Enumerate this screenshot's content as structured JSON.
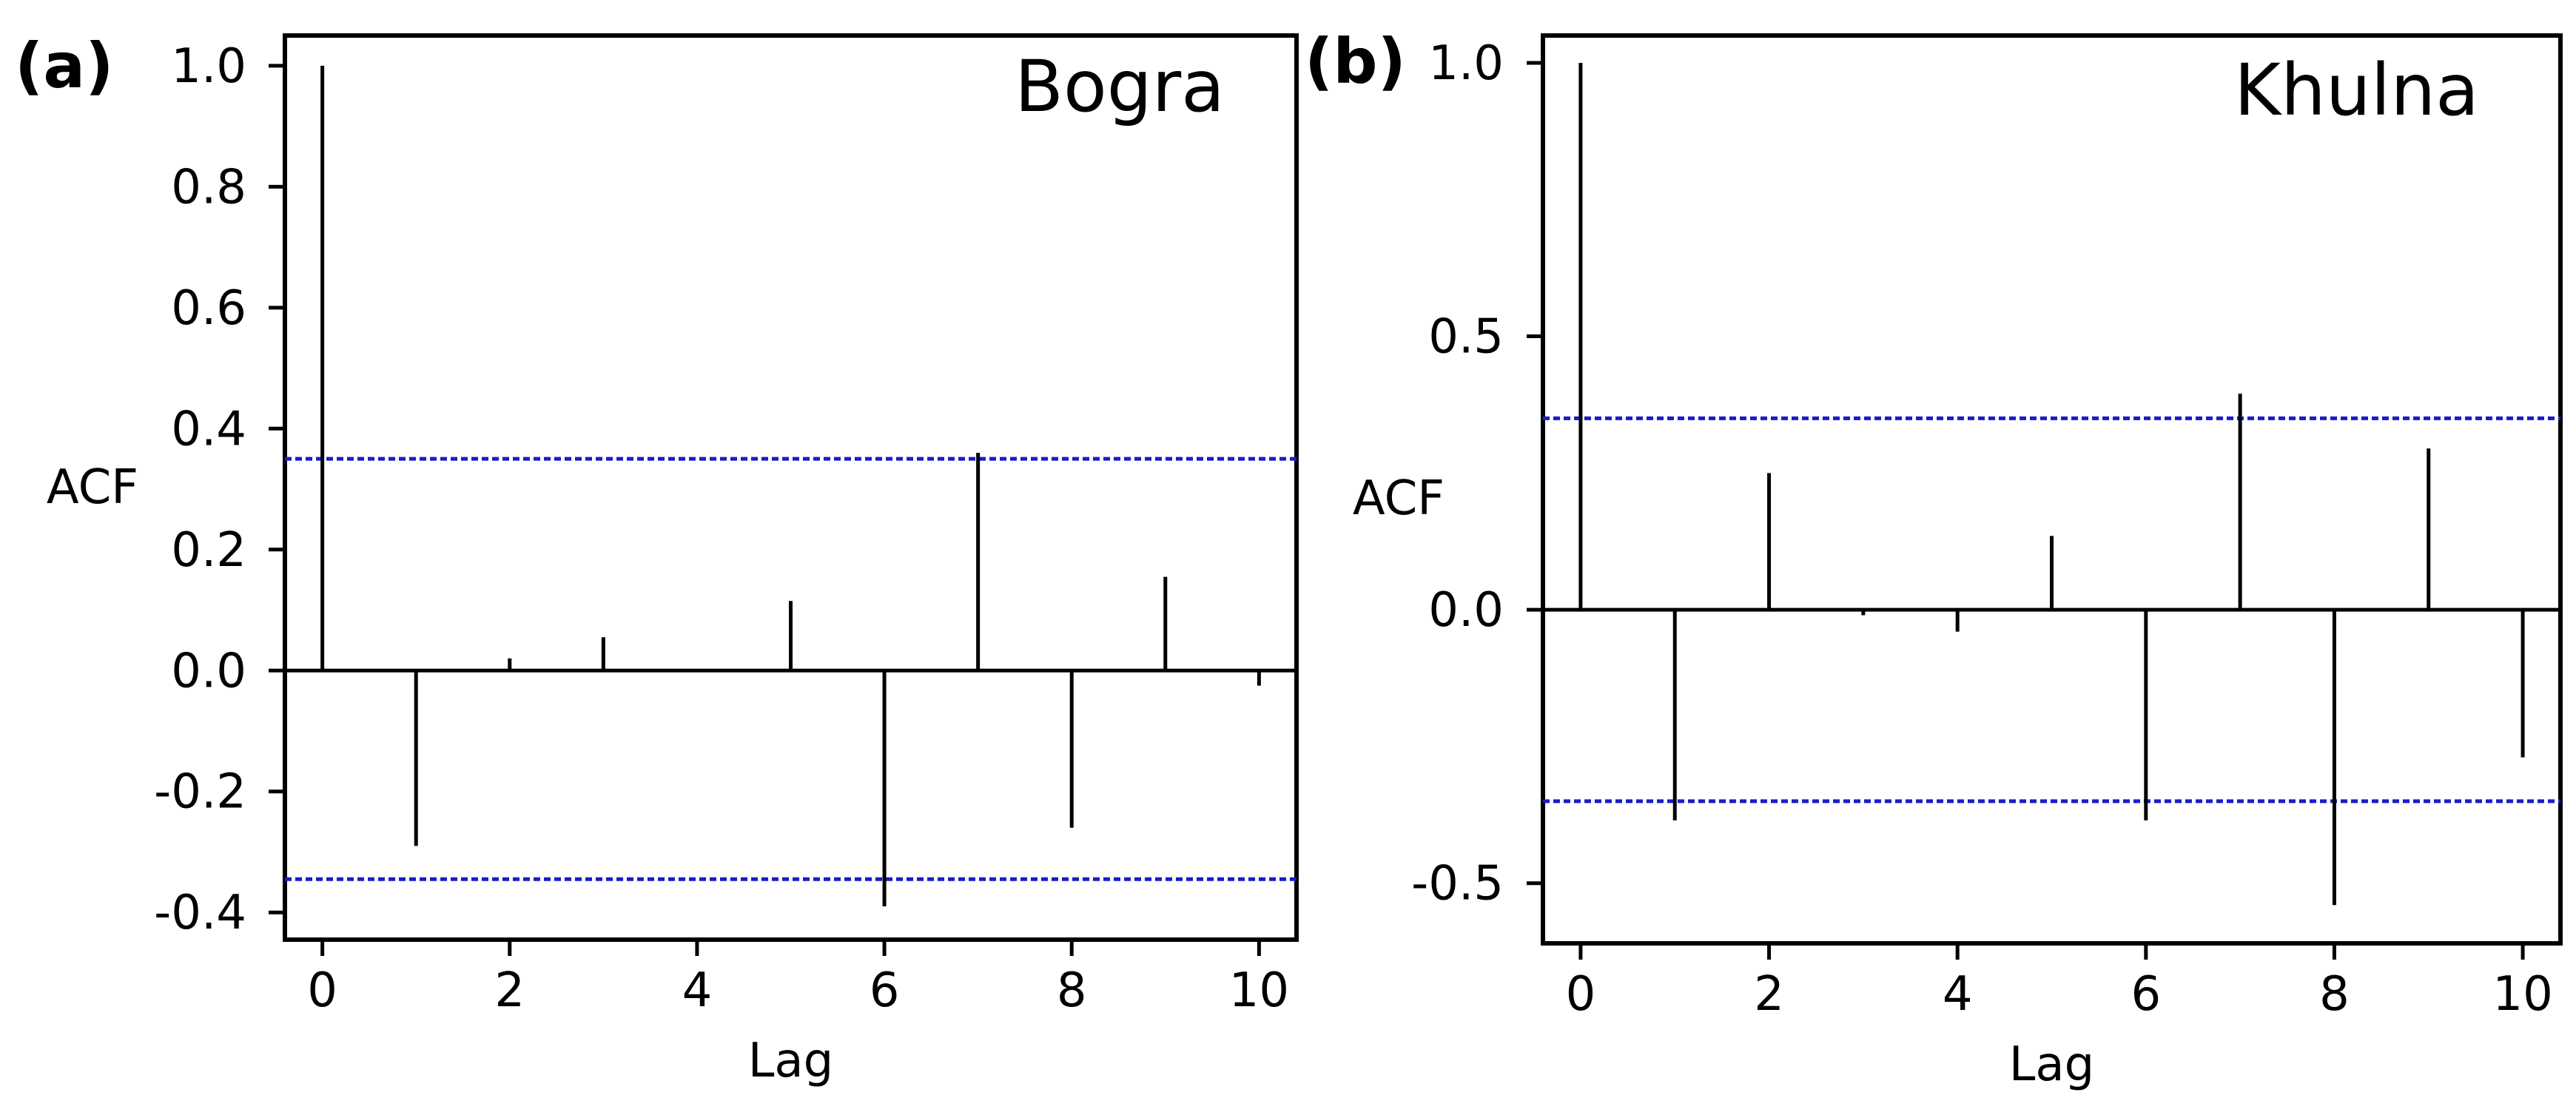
{
  "chart_data": [
    {
      "type": "bar",
      "panel_label": "(a)",
      "site": "Bogra",
      "xlabel": "Lag",
      "ylabel": "ACF",
      "x": [
        0,
        1,
        2,
        3,
        4,
        5,
        6,
        7,
        8,
        9,
        10
      ],
      "values": [
        1.0,
        -0.29,
        0.02,
        0.055,
        0.0,
        0.115,
        -0.39,
        0.36,
        -0.26,
        0.155,
        -0.025
      ],
      "confidence_limits": [
        0.35,
        -0.345
      ],
      "confidence_color": "#1a1acc",
      "bar_color": "#000000",
      "xlim": [
        -0.4,
        10.4
      ],
      "ylim": [
        -0.445,
        1.05
      ],
      "xticks": [
        0,
        2,
        4,
        6,
        8,
        10
      ],
      "xtick_labels": [
        "0",
        "2",
        "4",
        "6",
        "8",
        "10"
      ],
      "yticks": [
        1.0,
        0.8,
        0.6,
        0.4,
        0.2,
        0.0,
        -0.2,
        -0.4
      ],
      "ytick_labels": [
        "1.0",
        "0.8",
        "0.6",
        "0.4",
        "0.2",
        "0.0",
        "-0.2",
        "-0.4"
      ]
    },
    {
      "type": "bar",
      "panel_label": "(b)",
      "site": "Khulna",
      "xlabel": "Lag",
      "ylabel": "ACF",
      "x": [
        0,
        1,
        2,
        3,
        4,
        5,
        6,
        7,
        8,
        9,
        10
      ],
      "values": [
        1.0,
        -0.385,
        0.25,
        -0.01,
        -0.04,
        0.135,
        -0.385,
        0.395,
        -0.54,
        0.295,
        -0.27
      ],
      "confidence_limits": [
        0.35,
        -0.35
      ],
      "confidence_color": "#1a1acc",
      "bar_color": "#000000",
      "xlim": [
        -0.4,
        10.4
      ],
      "ylim": [
        -0.61,
        1.05
      ],
      "xticks": [
        0,
        2,
        4,
        6,
        8,
        10
      ],
      "xtick_labels": [
        "0",
        "2",
        "4",
        "6",
        "8",
        "10"
      ],
      "yticks": [
        1.0,
        0.5,
        0.0,
        -0.5
      ],
      "ytick_labels": [
        "1.0",
        "0.5",
        "0.0",
        "-0.5"
      ]
    }
  ]
}
